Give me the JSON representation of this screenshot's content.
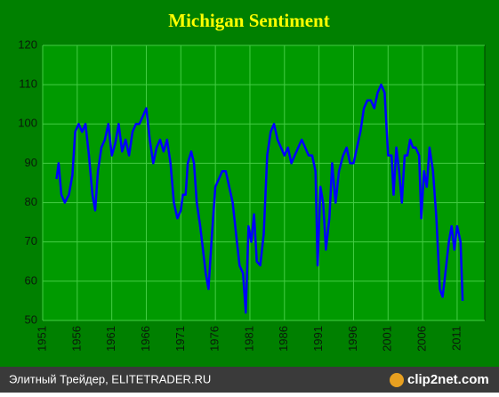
{
  "chart_data": {
    "type": "line",
    "title": "Michigan Sentiment",
    "x": [
      1953.0,
      1953.3,
      1953.7,
      1954.2,
      1954.8,
      1955.3,
      1955.7,
      1956.2,
      1956.7,
      1957.2,
      1957.7,
      1958.2,
      1958.6,
      1959.0,
      1959.5,
      1960.0,
      1960.5,
      1961.0,
      1961.5,
      1962.0,
      1962.5,
      1963.0,
      1963.5,
      1964.0,
      1964.5,
      1965.0,
      1965.5,
      1966.0,
      1966.5,
      1967.0,
      1967.5,
      1968.0,
      1968.5,
      1969.0,
      1969.5,
      1970.0,
      1970.5,
      1971.0,
      1971.3,
      1971.7,
      1972.0,
      1972.5,
      1972.9,
      1973.3,
      1973.8,
      1974.2,
      1974.6,
      1975.0,
      1975.5,
      1976.0,
      1976.5,
      1977.0,
      1977.5,
      1978.0,
      1978.5,
      1979.0,
      1979.5,
      1980.0,
      1980.4,
      1980.8,
      1981.2,
      1981.6,
      1982.0,
      1982.5,
      1983.0,
      1983.5,
      1984.0,
      1984.5,
      1985.0,
      1985.5,
      1986.0,
      1986.5,
      1987.0,
      1987.5,
      1988.0,
      1988.5,
      1989.0,
      1989.5,
      1990.0,
      1990.5,
      1990.8,
      1991.2,
      1991.6,
      1992.0,
      1992.5,
      1992.9,
      1993.4,
      1993.9,
      1994.5,
      1995.0,
      1995.5,
      1996.0,
      1996.5,
      1997.0,
      1997.5,
      1998.0,
      1998.5,
      1999.0,
      1999.5,
      2000.0,
      2000.5,
      2001.0,
      2001.5,
      2001.8,
      2002.2,
      2002.6,
      2003.0,
      2003.4,
      2003.8,
      2004.2,
      2004.6,
      2005.0,
      2005.5,
      2005.8,
      2006.2,
      2006.6,
      2007.0,
      2007.5,
      2008.0,
      2008.5,
      2008.9,
      2009.3,
      2009.8,
      2010.2,
      2010.6,
      2011.0,
      2011.5,
      2011.8
    ],
    "series": [
      {
        "name": "Michigan Sentiment",
        "color": "#0000ff",
        "values": [
          86,
          90,
          82,
          80,
          82,
          87,
          98,
          100,
          98,
          100,
          92,
          82,
          78,
          88,
          94,
          96,
          100,
          92,
          95,
          100,
          93,
          96,
          92,
          98,
          100,
          100,
          102,
          104,
          96,
          90,
          94,
          96,
          93,
          96,
          90,
          80,
          76,
          78,
          82,
          82,
          90,
          93,
          90,
          80,
          74,
          68,
          62,
          58,
          72,
          84,
          86,
          88,
          88,
          84,
          80,
          72,
          64,
          62,
          52,
          74,
          70,
          77,
          65,
          64,
          72,
          92,
          98,
          100,
          96,
          94,
          92,
          94,
          90,
          92,
          94,
          96,
          94,
          92,
          92,
          88,
          64,
          84,
          80,
          68,
          76,
          90,
          80,
          88,
          92,
          94,
          90,
          90,
          94,
          98,
          104,
          106,
          106,
          104,
          108,
          110,
          108,
          92,
          92,
          82,
          94,
          88,
          80,
          92,
          92,
          96,
          94,
          94,
          92,
          76,
          88,
          84,
          94,
          88,
          76,
          58,
          56,
          62,
          70,
          74,
          68,
          74,
          70,
          55
        ]
      }
    ],
    "xlim": [
      1951,
      2015
    ],
    "xticks": [
      1951,
      1956,
      1961,
      1966,
      1971,
      1976,
      1981,
      1986,
      1991,
      1996,
      2001,
      2006,
      2011
    ],
    "ylim": [
      50,
      120
    ],
    "yticks": [
      50,
      60,
      70,
      80,
      90,
      100,
      110,
      120
    ],
    "grid": true
  },
  "footer": {
    "source": "Элитный Трейдер, ELITETRADER.RU",
    "logo": "clip2net.com"
  }
}
